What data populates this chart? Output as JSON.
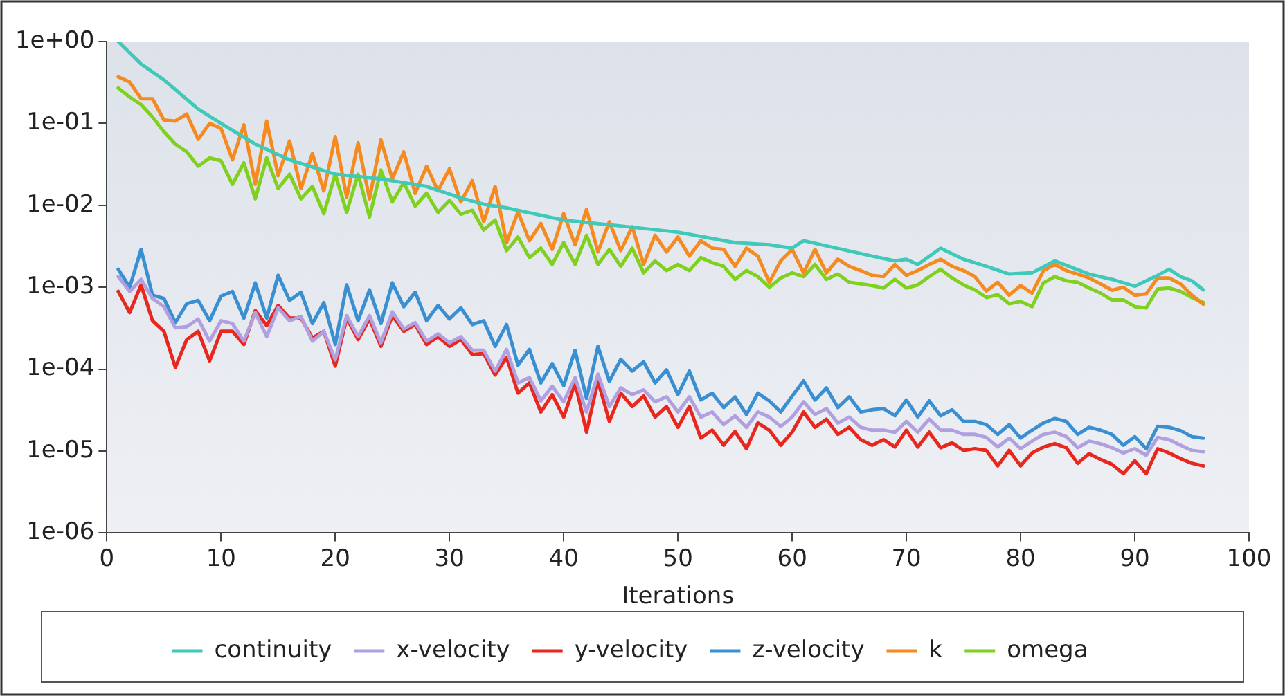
{
  "chart_data": {
    "type": "line",
    "xlabel": "Iterations",
    "legend": "bottom",
    "log": "y",
    "marker": "none",
    "line_style": "solid",
    "grid": false,
    "xlim": [
      0,
      100
    ],
    "xticks": [
      0,
      10,
      20,
      30,
      40,
      50,
      60,
      70,
      80,
      90,
      100
    ],
    "ylim": [
      1e-06,
      1
    ],
    "yticks": [
      {
        "value": 1e-06,
        "label": "1e-06"
      },
      {
        "value": 1e-05,
        "label": "1e-05"
      },
      {
        "value": 0.0001,
        "label": "1e-04"
      },
      {
        "value": 0.001,
        "label": "1e-03"
      },
      {
        "value": 0.01,
        "label": "1e-02"
      },
      {
        "value": 0.1,
        "label": "1e-01"
      },
      {
        "value": 1,
        "label": "1e+00"
      }
    ],
    "x": [
      1,
      2,
      3,
      4,
      5,
      6,
      7,
      8,
      9,
      10,
      11,
      12,
      13,
      14,
      15,
      16,
      17,
      18,
      19,
      20,
      21,
      22,
      23,
      24,
      25,
      26,
      27,
      28,
      29,
      30,
      31,
      32,
      33,
      34,
      35,
      36,
      37,
      38,
      39,
      40,
      41,
      42,
      43,
      44,
      45,
      46,
      47,
      48,
      49,
      50,
      51,
      52,
      53,
      54,
      55,
      56,
      57,
      58,
      59,
      60,
      61,
      62,
      63,
      64,
      65,
      66,
      67,
      68,
      69,
      70,
      71,
      72,
      73,
      74,
      75,
      76,
      77,
      78,
      79,
      80,
      81,
      82,
      83,
      84,
      85,
      86,
      87,
      88,
      89,
      90,
      91,
      92,
      93,
      94,
      95,
      96
    ],
    "series": [
      {
        "name": "continuity",
        "color": "#40c8b8",
        "x": [
          1,
          3,
          5,
          8,
          10,
          13,
          16,
          20,
          24,
          28,
          31,
          33,
          35,
          40,
          45,
          50,
          55,
          58,
          60,
          61,
          63,
          67,
          69,
          70,
          71,
          73,
          75,
          77,
          79,
          81,
          83,
          86,
          88,
          90,
          92,
          93,
          94,
          95,
          96
        ],
        "values": [
          1.0,
          0.53,
          0.34,
          0.15,
          0.1,
          0.056,
          0.036,
          0.024,
          0.021,
          0.017,
          0.0123,
          0.0103,
          0.0093,
          0.0066,
          0.0056,
          0.0047,
          0.0035,
          0.0033,
          0.003,
          0.0037,
          0.0032,
          0.0024,
          0.0021,
          0.0022,
          0.0019,
          0.003,
          0.0022,
          0.0018,
          0.00145,
          0.0015,
          0.0021,
          0.00145,
          0.00125,
          0.00103,
          0.0014,
          0.00166,
          0.00135,
          0.0012,
          0.00093
        ]
      },
      {
        "name": "x-velocity",
        "color": "#b0a0e0",
        "values": [
          0.00135,
          0.00089,
          0.00125,
          0.00073,
          0.00058,
          0.00032,
          0.00033,
          0.00041,
          0.00022,
          0.00039,
          0.00036,
          0.00022,
          0.00049,
          0.00025,
          0.00056,
          0.00039,
          0.00044,
          0.00022,
          0.00029,
          0.00013,
          0.00045,
          0.00025,
          0.00045,
          0.00021,
          0.0005,
          0.00031,
          0.00037,
          0.00022,
          0.00027,
          0.00021,
          0.00025,
          0.00017,
          0.00017,
          9.5e-05,
          0.000174,
          6.8e-05,
          7.9e-05,
          4.1e-05,
          6.2e-05,
          4e-05,
          7.9e-05,
          3e-05,
          8.7e-05,
          3.5e-05,
          5.9e-05,
          4.9e-05,
          5.6e-05,
          4e-05,
          4.6e-05,
          3e-05,
          4.6e-05,
          2.6e-05,
          3e-05,
          2.1e-05,
          2.7e-05,
          1.95e-05,
          3e-05,
          2.6e-05,
          2e-05,
          2.6e-05,
          4e-05,
          2.8e-05,
          3.3e-05,
          2.2e-05,
          2.6e-05,
          1.95e-05,
          1.8e-05,
          1.8e-05,
          1.7e-05,
          2.3e-05,
          1.7e-05,
          2.45e-05,
          1.8e-05,
          1.8e-05,
          1.6e-05,
          1.6e-05,
          1.47e-05,
          1.12e-05,
          1.44e-05,
          1.07e-05,
          1.32e-05,
          1.6e-05,
          1.7e-05,
          1.5e-05,
          1.1e-05,
          1.32e-05,
          1.23e-05,
          1.1e-05,
          9.5e-06,
          1.07e-05,
          8.9e-06,
          1.47e-05,
          1.38e-05,
          1.18e-05,
          1.02e-05,
          9.8e-06
        ]
      },
      {
        "name": "y-velocity",
        "color": "#e8281e",
        "values": [
          0.00089,
          0.00049,
          0.00107,
          0.00039,
          0.00029,
          0.000105,
          0.00023,
          0.00029,
          0.000126,
          0.00029,
          0.00029,
          0.0002,
          0.00052,
          0.00034,
          0.0006,
          0.00042,
          0.00042,
          0.00024,
          0.00029,
          0.000109,
          0.00042,
          0.00023,
          0.00041,
          0.00019,
          0.00045,
          0.00029,
          0.00035,
          0.0002,
          0.00025,
          0.00019,
          0.00023,
          0.000151,
          0.000155,
          8.5e-05,
          0.00014,
          5.1e-05,
          6.8e-05,
          3e-05,
          4.9e-05,
          2.6e-05,
          6.8e-05,
          1.7e-05,
          7.2e-05,
          2.3e-05,
          5.1e-05,
          3.5e-05,
          4.7e-05,
          2.6e-05,
          3.5e-05,
          1.95e-05,
          3.5e-05,
          1.44e-05,
          1.8e-05,
          1.18e-05,
          1.74e-05,
          1.07e-05,
          2.2e-05,
          1.8e-05,
          1.18e-05,
          1.7e-05,
          3e-05,
          1.95e-05,
          2.45e-05,
          1.6e-05,
          1.95e-05,
          1.38e-05,
          1.18e-05,
          1.38e-05,
          1.12e-05,
          1.8e-05,
          1.12e-05,
          1.7e-05,
          1.1e-05,
          1.26e-05,
          1.02e-05,
          1.07e-05,
          1.02e-05,
          6.6e-06,
          1.02e-05,
          6.6e-06,
          9.5e-06,
          1.12e-05,
          1.23e-05,
          1.1e-05,
          7.1e-06,
          9.3e-06,
          7.9e-06,
          6.9e-06,
          5.3e-06,
          7.6e-06,
          5.3e-06,
          1.07e-05,
          9.5e-06,
          8.1e-06,
          7.1e-06,
          6.6e-06
        ]
      },
      {
        "name": "z-velocity",
        "color": "#3a8fd0",
        "values": [
          0.00166,
          0.001,
          0.0029,
          0.0008,
          0.00073,
          0.00037,
          0.00063,
          0.00069,
          0.00039,
          0.00078,
          0.00089,
          0.00042,
          0.00113,
          0.00042,
          0.0014,
          0.00069,
          0.00087,
          0.00036,
          0.00065,
          0.0002,
          0.00107,
          0.00039,
          0.00093,
          0.00036,
          0.00113,
          0.00058,
          0.00087,
          0.00039,
          0.0006,
          0.00041,
          0.00056,
          0.00035,
          0.00039,
          0.00019,
          0.00035,
          0.000112,
          0.000174,
          6.8e-05,
          0.000117,
          6.3e-05,
          0.00017,
          4.4e-05,
          0.00019,
          7.1e-05,
          0.000132,
          9.5e-05,
          0.000123,
          6.8e-05,
          9.8e-05,
          4.9e-05,
          9.5e-05,
          4.2e-05,
          5.1e-05,
          3.4e-05,
          4.6e-05,
          2.8e-05,
          5.1e-05,
          4.1e-05,
          3e-05,
          4.7e-05,
          7.2e-05,
          4.2e-05,
          5.9e-05,
          3.4e-05,
          4.6e-05,
          3e-05,
          3.2e-05,
          3.3e-05,
          2.7e-05,
          4.2e-05,
          2.6e-05,
          4.1e-05,
          2.7e-05,
          3.2e-05,
          2.3e-05,
          2.3e-05,
          2.1e-05,
          1.6e-05,
          2.1e-05,
          1.44e-05,
          1.8e-05,
          2.2e-05,
          2.5e-05,
          2.3e-05,
          1.6e-05,
          1.95e-05,
          1.8e-05,
          1.6e-05,
          1.18e-05,
          1.5e-05,
          1.07e-05,
          2e-05,
          1.95e-05,
          1.78e-05,
          1.5e-05,
          1.44e-05
        ]
      },
      {
        "name": "k",
        "color": "#f58a20",
        "values": [
          0.37,
          0.32,
          0.2,
          0.2,
          0.11,
          0.107,
          0.13,
          0.064,
          0.1,
          0.087,
          0.036,
          0.096,
          0.018,
          0.107,
          0.023,
          0.061,
          0.016,
          0.043,
          0.015,
          0.069,
          0.0126,
          0.058,
          0.012,
          0.063,
          0.021,
          0.045,
          0.014,
          0.03,
          0.015,
          0.028,
          0.011,
          0.02,
          0.0063,
          0.017,
          0.0035,
          0.0083,
          0.0037,
          0.006,
          0.0029,
          0.0079,
          0.0033,
          0.0089,
          0.0027,
          0.0063,
          0.0028,
          0.0055,
          0.0019,
          0.0043,
          0.0027,
          0.0041,
          0.0024,
          0.0037,
          0.003,
          0.0029,
          0.0018,
          0.003,
          0.0024,
          0.00115,
          0.0021,
          0.0029,
          0.0015,
          0.0029,
          0.0015,
          0.0022,
          0.0018,
          0.0016,
          0.0014,
          0.00135,
          0.0019,
          0.0014,
          0.0016,
          0.0019,
          0.0022,
          0.0018,
          0.0016,
          0.00135,
          0.0009,
          0.00115,
          0.0008,
          0.00105,
          0.00085,
          0.0016,
          0.0019,
          0.0016,
          0.00145,
          0.0013,
          0.0011,
          0.00092,
          0.001,
          0.0008,
          0.00083,
          0.0013,
          0.0013,
          0.0011,
          0.0008,
          0.00062
        ]
      },
      {
        "name": "omega",
        "color": "#80d020",
        "values": [
          0.27,
          0.21,
          0.17,
          0.12,
          0.079,
          0.056,
          0.045,
          0.03,
          0.038,
          0.035,
          0.018,
          0.033,
          0.012,
          0.038,
          0.016,
          0.024,
          0.012,
          0.017,
          0.0079,
          0.024,
          0.0082,
          0.024,
          0.0072,
          0.027,
          0.011,
          0.019,
          0.0098,
          0.014,
          0.0082,
          0.0115,
          0.0078,
          0.0087,
          0.005,
          0.0066,
          0.0028,
          0.0041,
          0.0023,
          0.003,
          0.0019,
          0.0035,
          0.0019,
          0.0043,
          0.0019,
          0.0029,
          0.0018,
          0.003,
          0.0015,
          0.0021,
          0.0016,
          0.0019,
          0.0016,
          0.0023,
          0.002,
          0.0018,
          0.00125,
          0.0016,
          0.00135,
          0.001,
          0.0013,
          0.0015,
          0.00135,
          0.0019,
          0.00125,
          0.00145,
          0.00115,
          0.0011,
          0.00105,
          0.00098,
          0.00125,
          0.00098,
          0.00107,
          0.00135,
          0.00166,
          0.0013,
          0.00107,
          0.00093,
          0.00075,
          0.00081,
          0.00063,
          0.00067,
          0.00058,
          0.00113,
          0.00135,
          0.0012,
          0.00115,
          0.00098,
          0.00085,
          0.0007,
          0.0007,
          0.00058,
          0.00056,
          0.00095,
          0.00098,
          0.00089,
          0.00075,
          0.00065
        ]
      }
    ]
  }
}
